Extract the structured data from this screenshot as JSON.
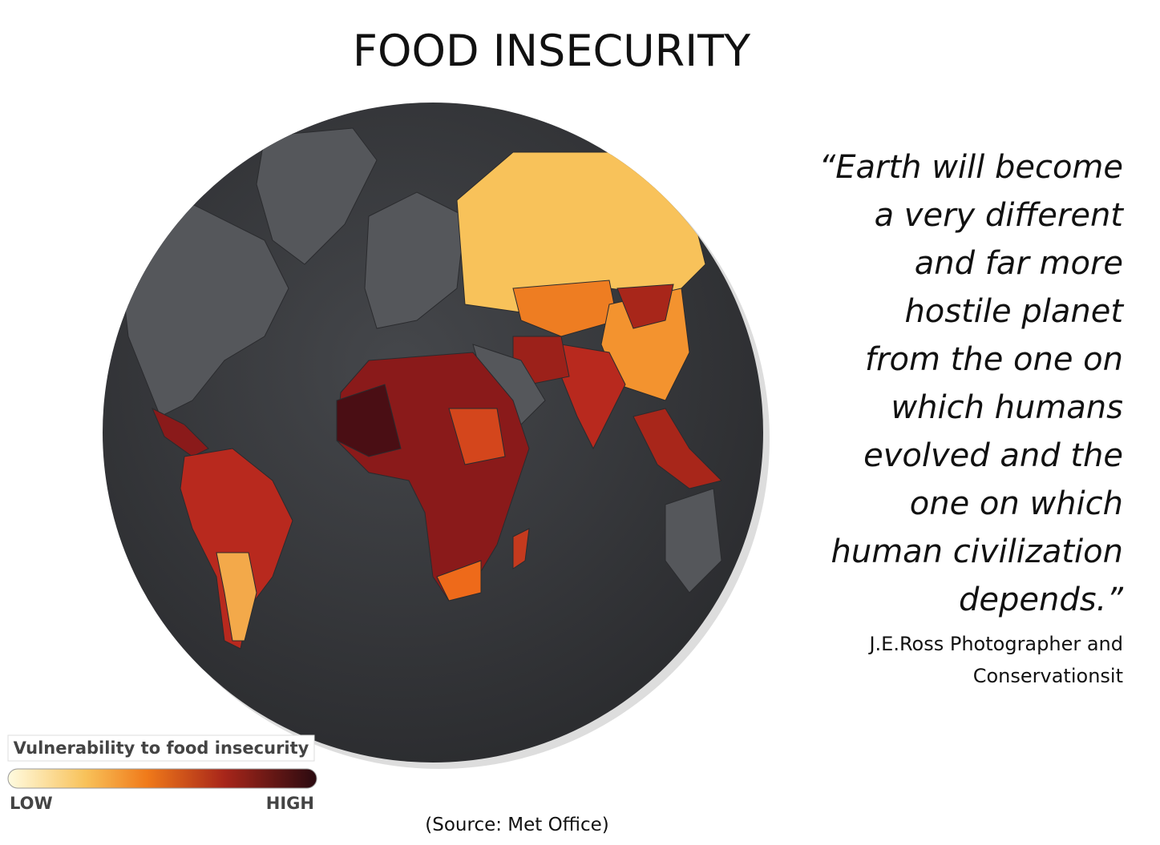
{
  "title": "FOOD INSECURITY",
  "quote": {
    "lines": [
      "“Earth will become",
      "a very different",
      "and far more",
      "hostile planet",
      "from the one on",
      "which humans",
      "evolved and the",
      "one on which",
      "human civilization",
      "depends.”"
    ],
    "attribution": [
      "J.E.Ross Photographer  and",
      "Conservationsit"
    ]
  },
  "legend": {
    "title": "Vulnerability to food insecurity",
    "low": "LOW",
    "high": "HIGH"
  },
  "source": "(Source:  Met Office)"
}
